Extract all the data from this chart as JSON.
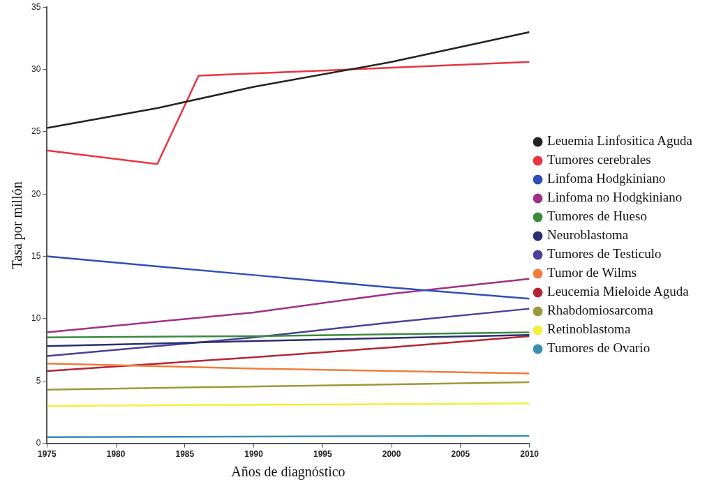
{
  "chart_data": {
    "type": "line",
    "xlabel": "Años de diagnóstico",
    "ylabel": "Tasa por millón",
    "xlim": [
      1975,
      2010
    ],
    "xticks": [
      1975,
      1980,
      1985,
      1990,
      1995,
      2000,
      2005,
      2010
    ],
    "ylim": [
      0,
      35
    ],
    "yticks": [
      0,
      5,
      10,
      15,
      20,
      25,
      30,
      35
    ],
    "grid": false,
    "legend": "right",
    "marker": "none",
    "line_style": "solid",
    "series": [
      {
        "name": "Leuemia Linfositica Aguda",
        "color": "#222222",
        "x": [
          1975,
          1983,
          1990,
          2000,
          2010
        ],
        "values": [
          25.3,
          26.9,
          28.6,
          30.6,
          33.0
        ]
      },
      {
        "name": "Tumores cerebrales",
        "color": "#e8353f",
        "x": [
          1975,
          1983,
          1986,
          2010
        ],
        "values": [
          23.5,
          22.4,
          29.5,
          30.6
        ]
      },
      {
        "name": "Linfoma Hodgkiniano",
        "color": "#2f4fb8",
        "x": [
          1975,
          1990,
          2000,
          2010
        ],
        "values": [
          15.0,
          13.5,
          12.5,
          11.6
        ]
      },
      {
        "name": "Linfoma no Hodgkiniano",
        "color": "#a0308a",
        "x": [
          1975,
          1990,
          2000,
          2010
        ],
        "values": [
          8.9,
          10.5,
          12.0,
          13.2
        ]
      },
      {
        "name": "Tumores de Hueso",
        "color": "#3b8a3e",
        "x": [
          1975,
          1990,
          2010
        ],
        "values": [
          8.5,
          8.6,
          8.9
        ]
      },
      {
        "name": "Neuroblastoma",
        "color": "#2c2f6e",
        "x": [
          1975,
          1990,
          2010
        ],
        "values": [
          7.8,
          8.2,
          8.7
        ]
      },
      {
        "name": "Tumores de Testiculo",
        "color": "#4b3f9a",
        "x": [
          1975,
          1990,
          2000,
          2010
        ],
        "values": [
          7.0,
          8.5,
          9.7,
          10.8
        ]
      },
      {
        "name": "Tumor de Wilms",
        "color": "#f07c3c",
        "x": [
          1975,
          1990,
          2010
        ],
        "values": [
          6.4,
          6.0,
          5.6
        ]
      },
      {
        "name": "Leucemia Mieloide Aguda",
        "color": "#b52535",
        "x": [
          1975,
          1990,
          2000,
          2010
        ],
        "values": [
          5.8,
          6.9,
          7.7,
          8.6
        ]
      },
      {
        "name": "Rhabdomiosarcoma",
        "color": "#9a9a3a",
        "x": [
          1975,
          2010
        ],
        "values": [
          4.3,
          4.9
        ]
      },
      {
        "name": "Retinoblastoma",
        "color": "#f2ee3a",
        "x": [
          1975,
          2010
        ],
        "values": [
          3.0,
          3.2
        ]
      },
      {
        "name": "Tumores de Ovario",
        "color": "#3a8fb0",
        "x": [
          1975,
          2010
        ],
        "values": [
          0.5,
          0.6
        ]
      }
    ]
  }
}
